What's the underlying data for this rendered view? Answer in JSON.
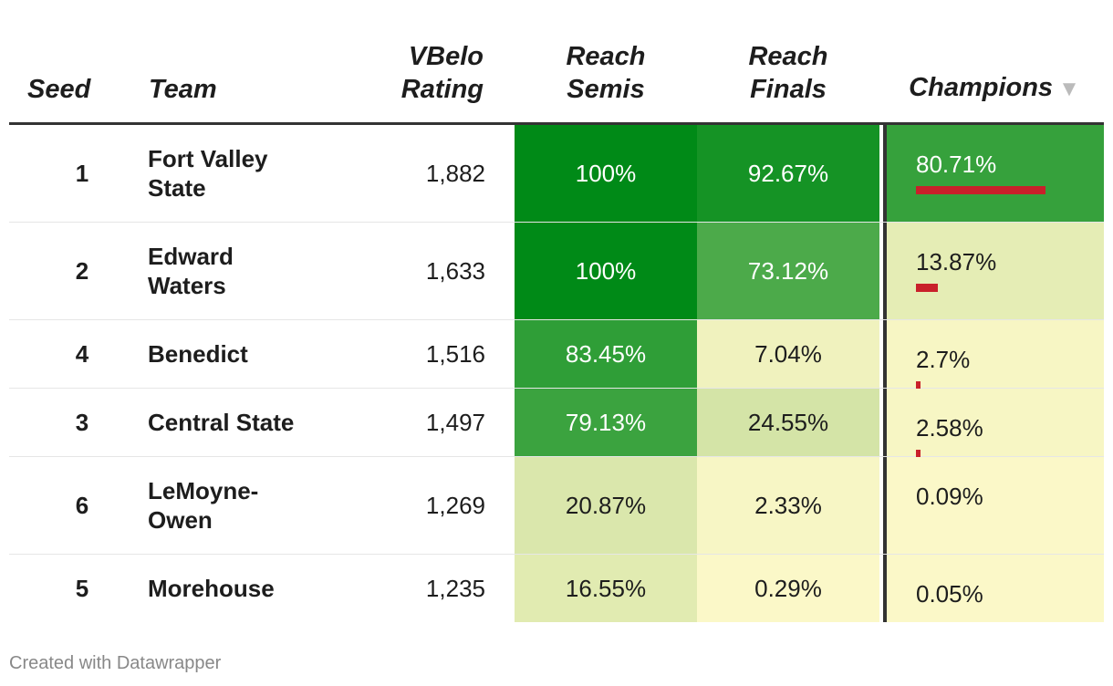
{
  "columns": {
    "seed": "Seed",
    "team": "Team",
    "rating_line1": "VBelo",
    "rating_line2": "Rating",
    "semis_line1": "Reach",
    "semis_line2": "Semis",
    "finals_line1": "Reach",
    "finals_line2": "Finals",
    "champions": "Champions",
    "sort_indicator": "▼"
  },
  "chart_data": {
    "type": "table",
    "columns": [
      "Seed",
      "Team",
      "VBelo Rating",
      "Reach Semis",
      "Reach Finals",
      "Champions"
    ],
    "rows": [
      {
        "seed": "1",
        "team_line1": "Fort Valley",
        "team_line2": "State",
        "rating": "1,882",
        "semis": "100%",
        "finals": "92.67%",
        "champions": "80.71%",
        "champ_value": 80.71
      },
      {
        "seed": "2",
        "team_line1": "Edward",
        "team_line2": "Waters",
        "rating": "1,633",
        "semis": "100%",
        "finals": "73.12%",
        "champions": "13.87%",
        "champ_value": 13.87
      },
      {
        "seed": "4",
        "team_line1": "Benedict",
        "team_line2": "",
        "rating": "1,516",
        "semis": "83.45%",
        "finals": "7.04%",
        "champions": "2.7%",
        "champ_value": 2.7
      },
      {
        "seed": "3",
        "team_line1": "Central State",
        "team_line2": "",
        "rating": "1,497",
        "semis": "79.13%",
        "finals": "24.55%",
        "champions": "2.58%",
        "champ_value": 2.58
      },
      {
        "seed": "6",
        "team_line1": "LeMoyne-",
        "team_line2": "Owen",
        "rating": "1,269",
        "semis": "20.87%",
        "finals": "2.33%",
        "champions": "0.09%",
        "champ_value": 0.09
      },
      {
        "seed": "5",
        "team_line1": "Morehouse",
        "team_line2": "",
        "rating": "1,235",
        "semis": "16.55%",
        "finals": "0.29%",
        "champions": "0.05%",
        "champ_value": 0.05
      }
    ],
    "sorted_by": "Champions",
    "sort_direction": "descending",
    "colors": {
      "scale_low": "#fbf8c8",
      "scale_mid": "#d3e4a6",
      "scale_high": "#008a17",
      "bar": "#c9202a"
    }
  },
  "footer": "Created with Datawrapper"
}
